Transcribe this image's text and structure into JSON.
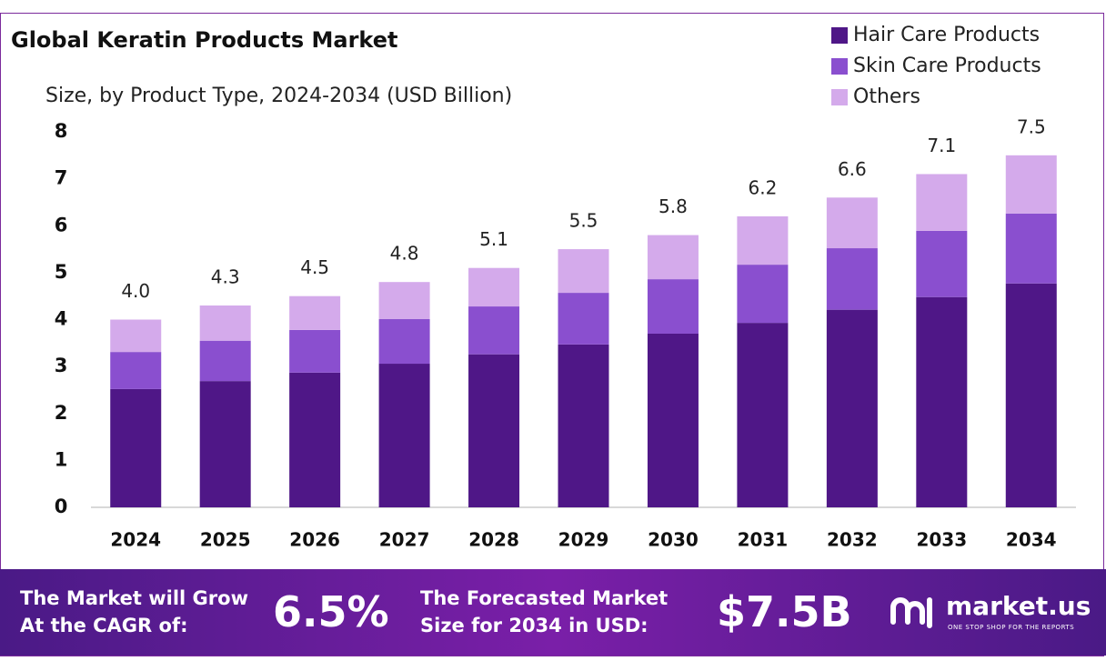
{
  "chart_data": {
    "type": "stacked-bar",
    "title": "Global Keratin Products Market",
    "subtitle": "Size, by Product Type, 2024-2034 (USD Billion)",
    "categories": [
      "2024",
      "2025",
      "2026",
      "2027",
      "2028",
      "2029",
      "2030",
      "2031",
      "2032",
      "2033",
      "2034"
    ],
    "series": [
      {
        "name": "Hair Care Products",
        "color": "#4f1787",
        "values": [
          2.52,
          2.69,
          2.87,
          3.06,
          3.26,
          3.47,
          3.7,
          3.93,
          4.21,
          4.48,
          4.77
        ]
      },
      {
        "name": "Skin Care Products",
        "color": "#8a4fcf",
        "values": [
          0.79,
          0.86,
          0.91,
          0.95,
          1.02,
          1.1,
          1.16,
          1.24,
          1.31,
          1.41,
          1.49
        ]
      },
      {
        "name": "Others",
        "color": "#d4aaeb",
        "values": [
          0.69,
          0.75,
          0.72,
          0.79,
          0.82,
          0.93,
          0.94,
          1.03,
          1.08,
          1.21,
          1.24
        ]
      }
    ],
    "totals": {
      "values": [
        4,
        4.3,
        4.5,
        4.8,
        5.1,
        5.5,
        5.8,
        6.2,
        6.6,
        7.1,
        7.5
      ],
      "value_labels": [
        "4.0",
        "4.3",
        "4.5",
        "4.8",
        "5.1",
        "5.5",
        "5.8",
        "6.2",
        "6.6",
        "7.1",
        "7.5"
      ]
    },
    "ylim": [
      0,
      8
    ],
    "yticks": [
      0,
      1,
      2,
      3,
      4,
      5,
      6,
      7,
      8
    ],
    "grid": false,
    "legend": "top-right"
  },
  "footer": {
    "cagr_label": [
      "The Market will Grow",
      "At the CAGR of:"
    ],
    "cagr": "6.5%",
    "forecast_label": [
      "The Forecasted Market",
      "Size for 2034 in USD:"
    ],
    "forecast": "$7.5B",
    "brand": "market.us",
    "tagline": "ONE STOP SHOP FOR THE REPORTS"
  }
}
